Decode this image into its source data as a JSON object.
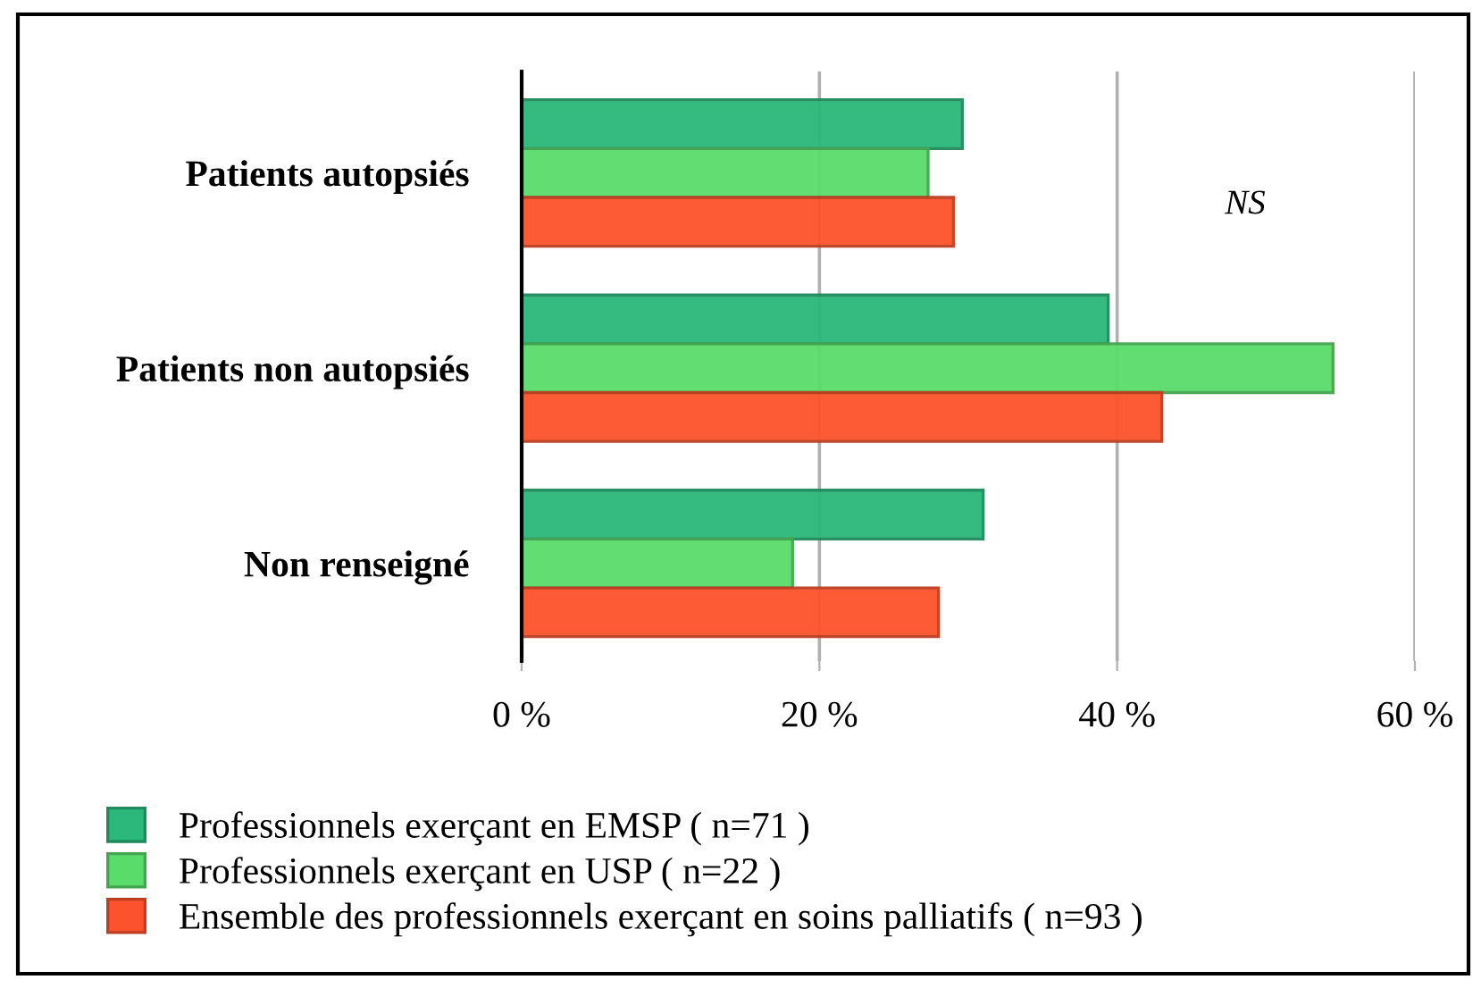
{
  "chart_data": {
    "type": "bar",
    "orientation": "horizontal",
    "categories": [
      "Patients autopsiés",
      "Patients non autopsiés",
      "Non renseigné"
    ],
    "series": [
      {
        "name": "Professionnels exerçant en EMSP ( n=71 )",
        "color": "#2bb87a",
        "values": [
          29.6,
          39.4,
          31.0
        ]
      },
      {
        "name": "Professionnels exerçant en USP ( n=22 )",
        "color": "#5adc6a",
        "values": [
          27.3,
          54.5,
          18.2
        ]
      },
      {
        "name": "Ensemble des professionnels exerçant en soins palliatifs ( n=93 )",
        "color": "#fc532c",
        "values": [
          29.0,
          43.0,
          28.0
        ]
      }
    ],
    "xlim": [
      0,
      60
    ],
    "xticks": [
      {
        "value": 0,
        "label": "0 %"
      },
      {
        "value": 20,
        "label": "20 %"
      },
      {
        "value": 40,
        "label": "40 %"
      },
      {
        "value": 60,
        "label": "60 %"
      }
    ],
    "grid": "x",
    "legend": "bottom left",
    "annotations": [
      "NS"
    ]
  }
}
